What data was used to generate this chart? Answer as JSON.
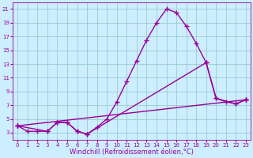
{
  "xlabel": "Windchill (Refroidissement éolien,°C)",
  "bg_color": "#cceeff",
  "grid_color": "#99cccc",
  "line_color": "#990099",
  "xlim": [
    -0.5,
    23.5
  ],
  "ylim": [
    2,
    22
  ],
  "xticks": [
    0,
    1,
    2,
    3,
    4,
    5,
    6,
    7,
    8,
    9,
    10,
    11,
    12,
    13,
    14,
    15,
    16,
    17,
    18,
    19,
    20,
    21,
    22,
    23
  ],
  "yticks": [
    3,
    5,
    7,
    9,
    11,
    13,
    15,
    17,
    19,
    21
  ],
  "line1_x": [
    0,
    1,
    2,
    3,
    4,
    5,
    6,
    7,
    8,
    9,
    10,
    11,
    12,
    13,
    14,
    15,
    16,
    17,
    18,
    19,
    20,
    21,
    22,
    23
  ],
  "line1_y": [
    4.0,
    3.2,
    3.2,
    3.2,
    4.5,
    4.5,
    3.2,
    2.8,
    3.8,
    5.0,
    7.5,
    10.5,
    13.5,
    16.5,
    19.0,
    21.0,
    20.5,
    18.5,
    16.0,
    13.2,
    8.0,
    7.5,
    7.2,
    7.8
  ],
  "line2_x": [
    0,
    3,
    4,
    5,
    6,
    7,
    19,
    20,
    22,
    23
  ],
  "line2_y": [
    4.0,
    3.2,
    4.5,
    4.5,
    3.2,
    2.8,
    13.2,
    8.0,
    7.2,
    7.8
  ],
  "line3_x": [
    0,
    23
  ],
  "line3_y": [
    4.0,
    7.8
  ],
  "marker": "+",
  "markersize": 4,
  "linewidth": 1.0,
  "tick_fontsize": 5,
  "xlabel_fontsize": 6
}
